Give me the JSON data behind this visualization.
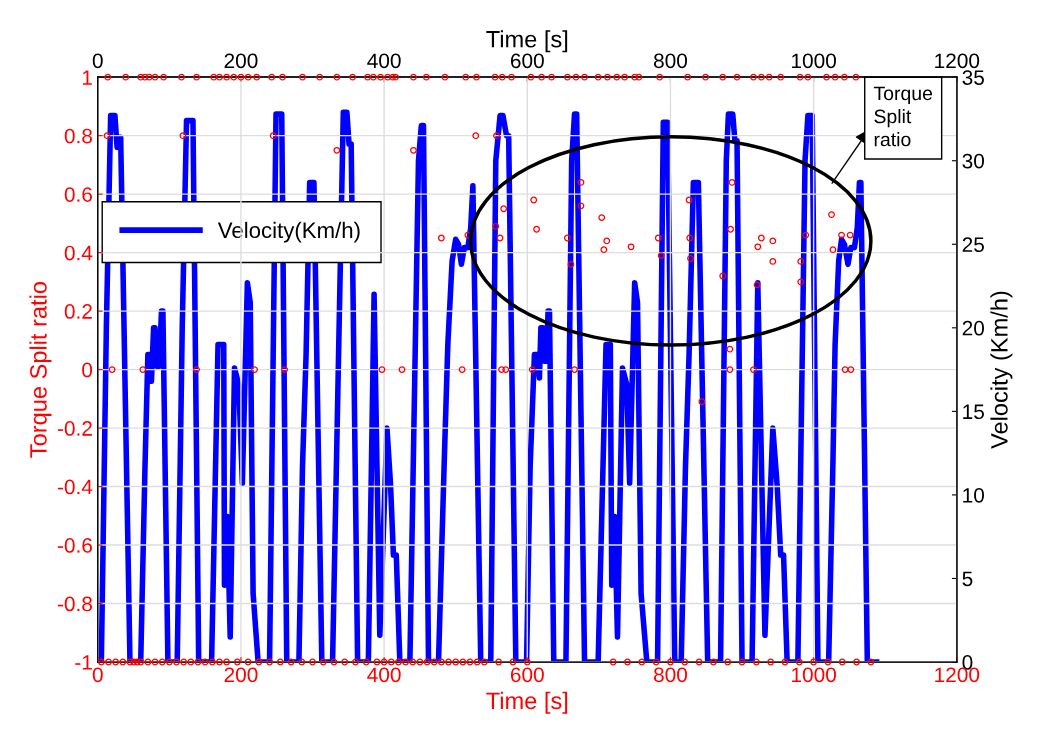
{
  "chart_data": {
    "type": "line",
    "xlabel": "Time [s]",
    "x2label": "Time [s]",
    "ylabel": "Torque Split ratio",
    "y2label": "Velocity (Km/h)",
    "xlim": [
      0,
      1200
    ],
    "xticks": [
      0,
      200,
      400,
      600,
      800,
      1000,
      1200
    ],
    "x2lim": [
      0,
      1200
    ],
    "x2ticks": [
      0,
      200,
      400,
      600,
      800,
      1000,
      1200
    ],
    "ylim": [
      -1,
      1
    ],
    "yticks": [
      -1,
      -0.8,
      -0.6,
      -0.4,
      -0.2,
      0,
      0.2,
      0.4,
      0.6,
      0.8,
      1
    ],
    "y2lim": [
      0,
      35
    ],
    "y2ticks": [
      0,
      5,
      10,
      15,
      20,
      25,
      30,
      35
    ],
    "grid": true,
    "legend": "left",
    "annotations": [
      "Torque Split ratio"
    ],
    "series": [
      {
        "type": "scatter",
        "color": "#ff0000",
        "marker": "circle",
        "x": [
          14,
          39,
          60,
          66,
          72,
          80,
          92,
          117,
          138,
          162,
          170,
          180,
          190,
          200,
          210,
          222,
          243,
          258,
          286,
          310,
          334,
          356,
          377,
          385,
          395,
          405,
          416,
          412,
          441,
          459,
          485,
          514,
          529,
          555,
          565,
          578,
          605,
          620,
          634,
          656,
          668,
          680,
          699,
          712,
          725,
          736,
          750,
          756,
          785,
          824,
          849,
          873,
          893,
          916,
          927,
          938,
          954,
          981,
          992,
          1018,
          1030,
          1043,
          1059,
          5,
          15,
          25,
          35,
          45,
          50,
          55,
          60,
          70,
          80,
          90,
          100,
          110,
          120,
          130,
          140,
          150,
          160,
          170,
          180,
          195,
          210,
          225,
          240,
          255,
          270,
          285,
          300,
          315,
          330,
          345,
          360,
          375,
          390,
          400,
          410,
          420,
          430,
          440,
          450,
          460,
          470,
          480,
          490,
          500,
          510,
          520,
          530,
          540,
          560,
          580,
          600,
          720,
          740,
          760,
          780,
          800,
          820,
          840,
          860,
          880,
          900,
          920,
          940,
          960,
          980,
          1000,
          1020,
          1040,
          1060,
          1080,
          13,
          119,
          245,
          334,
          441,
          528,
          557,
          480,
          609,
          613,
          704,
          711,
          707,
          745,
          556,
          567,
          675,
          675,
          656,
          661,
          783,
          787,
          562,
          517,
          826,
          827,
          828,
          873,
          886,
          884,
          922,
          927,
          943,
          943,
          921,
          883,
          844,
          1025,
          1027,
          1039,
          1051,
          982,
          982,
          989,
          20,
          63,
          138,
          219,
          261,
          397,
          425,
          509,
          564,
          570,
          607,
          666,
          883,
          916,
          1044,
          1052
        ],
        "values": [
          1,
          1,
          1,
          1,
          1,
          1,
          1,
          1,
          1,
          1,
          1,
          1,
          1,
          1,
          1,
          1,
          1,
          1,
          1,
          1,
          1,
          1,
          1,
          1,
          1,
          1,
          1,
          1,
          1,
          1,
          1,
          1,
          1,
          1,
          1,
          1,
          1,
          1,
          1,
          1,
          1,
          1,
          1,
          1,
          1,
          1,
          1,
          1,
          1,
          1,
          1,
          1,
          1,
          1,
          1,
          1,
          1,
          1,
          1,
          1,
          1,
          1,
          1,
          -1,
          -1,
          -1,
          -1,
          -1,
          -1,
          -1,
          -1,
          -1,
          -1,
          -1,
          -1,
          -1,
          -1,
          -1,
          -1,
          -1,
          -1,
          -1,
          -1,
          -1,
          -1,
          -1,
          -1,
          -1,
          -1,
          -1,
          -1,
          -1,
          -1,
          -1,
          -1,
          -1,
          -1,
          -1,
          -1,
          -1,
          -1,
          -1,
          -1,
          -1,
          -1,
          -1,
          -1,
          -1,
          -1,
          -1,
          -1,
          -1,
          -1,
          -1,
          -1,
          -1,
          -1,
          -1,
          -1,
          -1,
          -1,
          -1,
          -1,
          -1,
          -1,
          -1,
          -1,
          -1,
          -1,
          -1,
          -1,
          -1,
          -1,
          -1,
          0.8,
          0.8,
          0.8,
          0.75,
          0.75,
          0.8,
          0.8,
          0.45,
          0.58,
          0.48,
          0.52,
          0.44,
          0.41,
          0.42,
          0.49,
          0.55,
          0.64,
          0.56,
          0.45,
          0.36,
          0.45,
          0.39,
          0.45,
          0.46,
          0.58,
          0.45,
          0.38,
          0.32,
          0.64,
          0.48,
          0.42,
          0.45,
          0.44,
          0.37,
          0.29,
          0.07,
          -0.11,
          0.53,
          0.41,
          0.46,
          0.46,
          0.37,
          0.3,
          0.46,
          0,
          0,
          0,
          0,
          0,
          0,
          0,
          0,
          0,
          0,
          0,
          0,
          0,
          0,
          0,
          0
        ]
      },
      {
        "axis": "y2",
        "name": "Velocity(Km/h)",
        "color": "#0000ff",
        "marker": "none",
        "line_style": "solid",
        "x": [
          0,
          5,
          12,
          18,
          24,
          27,
          29,
          32,
          45,
          60,
          66,
          70,
          73,
          75,
          78,
          80,
          83,
          86,
          89,
          91,
          98,
          111,
          118,
          124,
          133,
          141,
          159,
          168,
          176,
          177,
          181,
          185,
          191,
          197,
          202,
          209,
          213,
          217,
          224,
          240,
          249,
          257,
          264,
          281,
          286,
          291,
          296,
          302,
          313,
          328,
          343,
          348,
          351,
          354,
          363,
          378,
          386,
          394,
          404,
          409,
          413,
          417,
          422,
          436,
          448,
          452,
          455,
          462,
          476,
          484,
          489,
          495,
          500,
          504,
          508,
          512,
          517,
          521,
          524,
          535,
          549,
          556,
          562,
          566,
          571,
          574,
          584,
          599,
          604,
          610,
          614,
          617,
          619,
          622,
          624,
          627,
          629,
          631,
          637,
          654,
          662,
          666,
          669,
          680,
          699,
          710,
          716,
          718,
          722,
          726,
          733,
          739,
          743,
          750,
          754,
          759,
          767,
          782,
          790,
          796,
          806,
          815,
          821,
          826,
          832,
          839,
          852,
          870,
          878,
          881,
          887,
          890,
          893,
          900,
          914,
          922,
          932,
          943,
          949,
          954,
          958,
          963,
          978,
          988,
          992,
          998,
          1006,
          1021,
          1027,
          1030,
          1035,
          1039,
          1043,
          1048,
          1052,
          1057,
          1061,
          1064,
          1066,
          1075,
          1088
        ],
        "values": [
          0,
          0,
          20,
          32.7,
          32.7,
          30.8,
          31.4,
          31.4,
          0,
          0,
          11.7,
          18.4,
          18.4,
          16.8,
          20,
          20,
          17.7,
          17.7,
          21,
          21,
          0,
          0,
          20,
          32.4,
          32.4,
          0,
          0,
          19,
          19,
          4.6,
          8.7,
          1.5,
          17.6,
          16.6,
          10.7,
          22.7,
          21.5,
          4.1,
          0,
          0,
          32.8,
          32.8,
          0,
          0,
          11.7,
          18.4,
          28.7,
          28.7,
          0,
          0,
          32.9,
          32.9,
          31,
          31,
          0,
          0,
          22,
          1.6,
          14,
          10.6,
          6.4,
          6.4,
          0,
          0,
          30,
          32.1,
          32.1,
          0,
          0,
          12,
          19,
          24,
          25.3,
          25,
          23.8,
          24.8,
          24.8,
          26,
          28.5,
          0,
          0,
          30,
          32.7,
          32.7,
          31.5,
          31.5,
          0,
          0,
          11.7,
          18.4,
          18.4,
          17,
          20,
          20,
          18,
          18,
          21,
          21,
          0,
          0,
          30,
          32.8,
          32.8,
          0,
          0,
          19,
          19,
          4.6,
          8.7,
          1.5,
          17.6,
          16.6,
          10.7,
          22.7,
          21.5,
          4.1,
          0,
          0,
          32.3,
          32.3,
          0,
          0,
          11.7,
          18.4,
          28.7,
          28.7,
          0,
          0,
          30,
          32.8,
          32.8,
          31.2,
          31.2,
          0,
          0,
          22.7,
          1.6,
          14,
          10.6,
          6.4,
          6.4,
          0,
          0,
          30,
          32.7,
          32.7,
          0,
          0,
          12,
          19,
          24,
          25.3,
          25,
          23.8,
          24.8,
          24.8,
          26,
          28.7,
          28.7,
          0,
          0
        ]
      }
    ]
  }
}
